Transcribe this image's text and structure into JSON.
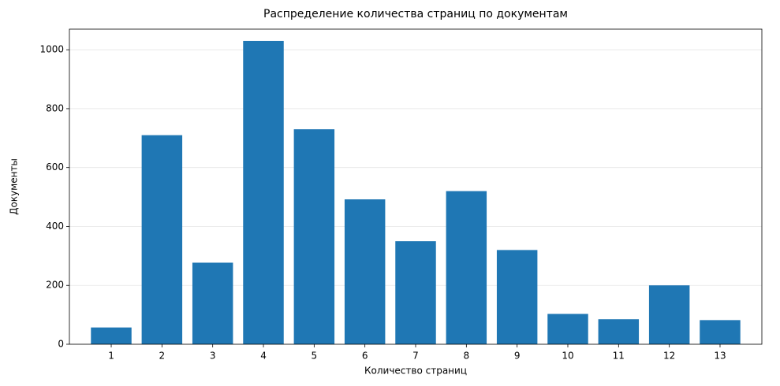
{
  "chart_data": {
    "type": "bar",
    "title": "Распределение количества страниц по документам",
    "x_label": "Количество страниц",
    "y_label": "Документы",
    "categories": [
      "1",
      "2",
      "3",
      "4",
      "5",
      "6",
      "7",
      "8",
      "9",
      "10",
      "11",
      "12",
      "13"
    ],
    "values": [
      57,
      710,
      277,
      1030,
      730,
      492,
      350,
      520,
      320,
      103,
      85,
      200,
      82
    ],
    "color": "#1f77b4",
    "ylim": [
      0,
      1070
    ],
    "yticks": [
      0,
      200,
      400,
      600,
      800,
      1000
    ],
    "grid": true
  }
}
